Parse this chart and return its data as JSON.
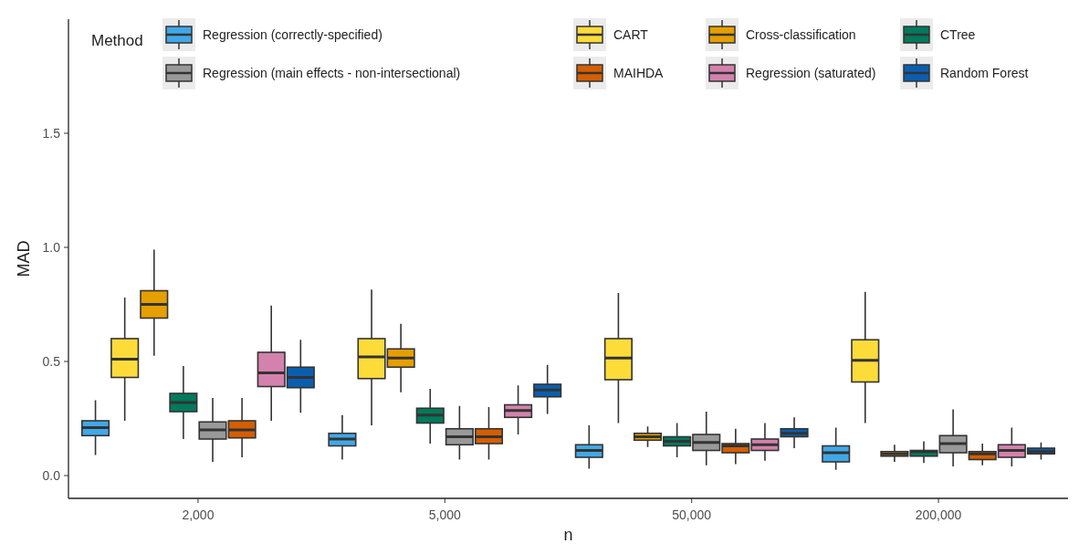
{
  "chart_data": {
    "type": "box",
    "xlabel": "n",
    "ylabel": "MAD",
    "legend_title": "Method",
    "legend": "top",
    "grid": false,
    "categories": [
      "2,000",
      "5,000",
      "50,000",
      "200,000"
    ],
    "ylim": [
      -0.1,
      2.0
    ],
    "yticks": [
      {
        "value": 0,
        "label": "0.0"
      },
      {
        "value": 0.5,
        "label": "0.5"
      },
      {
        "value": 1,
        "label": "1.0"
      },
      {
        "value": 1.5,
        "label": "1.5"
      }
    ],
    "series": [
      {
        "name": "Regression (correctly-specified)",
        "color": "#41a8e8",
        "boxes": [
          {
            "low": 0.09,
            "q1": 0.175,
            "median": 0.21,
            "q3": 0.24,
            "high": 0.33
          },
          {
            "low": 0.07,
            "q1": 0.13,
            "median": 0.16,
            "q3": 0.185,
            "high": 0.265
          },
          {
            "low": 0.03,
            "q1": 0.08,
            "median": 0.11,
            "q3": 0.135,
            "high": 0.22
          },
          {
            "low": 0.025,
            "q1": 0.06,
            "median": 0.1,
            "q3": 0.13,
            "high": 0.21
          }
        ]
      },
      {
        "name": "CART",
        "color": "#fddc3a",
        "boxes": [
          {
            "low": 0.24,
            "q1": 0.43,
            "median": 0.51,
            "q3": 0.6,
            "high": 0.78
          },
          {
            "low": 0.22,
            "q1": 0.425,
            "median": 0.52,
            "q3": 0.6,
            "high": 0.815
          },
          {
            "low": 0.23,
            "q1": 0.42,
            "median": 0.515,
            "q3": 0.6,
            "high": 0.8
          },
          {
            "low": 0.23,
            "q1": 0.41,
            "median": 0.505,
            "q3": 0.595,
            "high": 0.805
          }
        ]
      },
      {
        "name": "Cross-classification",
        "color": "#e69f00",
        "boxes": [
          {
            "low": 0.525,
            "q1": 0.69,
            "median": 0.75,
            "q3": 0.81,
            "high": 0.99
          },
          {
            "low": 0.365,
            "q1": 0.475,
            "median": 0.515,
            "q3": 0.555,
            "high": 0.665
          },
          {
            "low": 0.125,
            "q1": 0.155,
            "median": 0.17,
            "q3": 0.185,
            "high": 0.215
          },
          {
            "low": 0.06,
            "q1": 0.085,
            "median": 0.095,
            "q3": 0.105,
            "high": 0.135
          }
        ]
      },
      {
        "name": "CTree",
        "color": "#007a5c",
        "boxes": [
          {
            "low": 0.16,
            "q1": 0.28,
            "median": 0.32,
            "q3": 0.36,
            "high": 0.48
          },
          {
            "low": 0.14,
            "q1": 0.23,
            "median": 0.265,
            "q3": 0.295,
            "high": 0.38
          },
          {
            "low": 0.08,
            "q1": 0.13,
            "median": 0.15,
            "q3": 0.17,
            "high": 0.23
          },
          {
            "low": 0.055,
            "q1": 0.085,
            "median": 0.105,
            "q3": 0.11,
            "high": 0.15
          }
        ]
      },
      {
        "name": "Regression (main effects - non-intersectional)",
        "color": "#999999",
        "boxes": [
          {
            "low": 0.06,
            "q1": 0.16,
            "median": 0.2,
            "q3": 0.235,
            "high": 0.34
          },
          {
            "low": 0.07,
            "q1": 0.135,
            "median": 0.17,
            "q3": 0.205,
            "high": 0.305
          },
          {
            "low": 0.045,
            "q1": 0.11,
            "median": 0.145,
            "q3": 0.18,
            "high": 0.28
          },
          {
            "low": 0.04,
            "q1": 0.1,
            "median": 0.14,
            "q3": 0.175,
            "high": 0.29
          }
        ]
      },
      {
        "name": "MAIHDA",
        "color": "#d55e00",
        "boxes": [
          {
            "low": 0.08,
            "q1": 0.165,
            "median": 0.2,
            "q3": 0.24,
            "high": 0.34
          },
          {
            "low": 0.07,
            "q1": 0.14,
            "median": 0.17,
            "q3": 0.205,
            "high": 0.3
          },
          {
            "low": 0.05,
            "q1": 0.1,
            "median": 0.13,
            "q3": 0.14,
            "high": 0.205
          },
          {
            "low": 0.045,
            "q1": 0.07,
            "median": 0.095,
            "q3": 0.105,
            "high": 0.14
          }
        ]
      },
      {
        "name": "Regression (saturated)",
        "color": "#d382ad",
        "boxes": [
          {
            "low": 0.24,
            "q1": 0.39,
            "median": 0.45,
            "q3": 0.54,
            "high": 0.745
          },
          {
            "low": 0.18,
            "q1": 0.255,
            "median": 0.285,
            "q3": 0.31,
            "high": 0.395
          },
          {
            "low": 0.065,
            "q1": 0.11,
            "median": 0.135,
            "q3": 0.16,
            "high": 0.23
          },
          {
            "low": 0.04,
            "q1": 0.08,
            "median": 0.11,
            "q3": 0.135,
            "high": 0.21
          }
        ]
      },
      {
        "name": "Random Forest",
        "color": "#0a5eb0",
        "boxes": [
          {
            "low": 0.275,
            "q1": 0.385,
            "median": 0.43,
            "q3": 0.475,
            "high": 0.595
          },
          {
            "low": 0.27,
            "q1": 0.345,
            "median": 0.375,
            "q3": 0.4,
            "high": 0.485
          },
          {
            "low": 0.12,
            "q1": 0.17,
            "median": 0.185,
            "q3": 0.205,
            "high": 0.255
          },
          {
            "low": 0.07,
            "q1": 0.095,
            "median": 0.105,
            "q3": 0.12,
            "high": 0.145
          }
        ]
      }
    ]
  }
}
